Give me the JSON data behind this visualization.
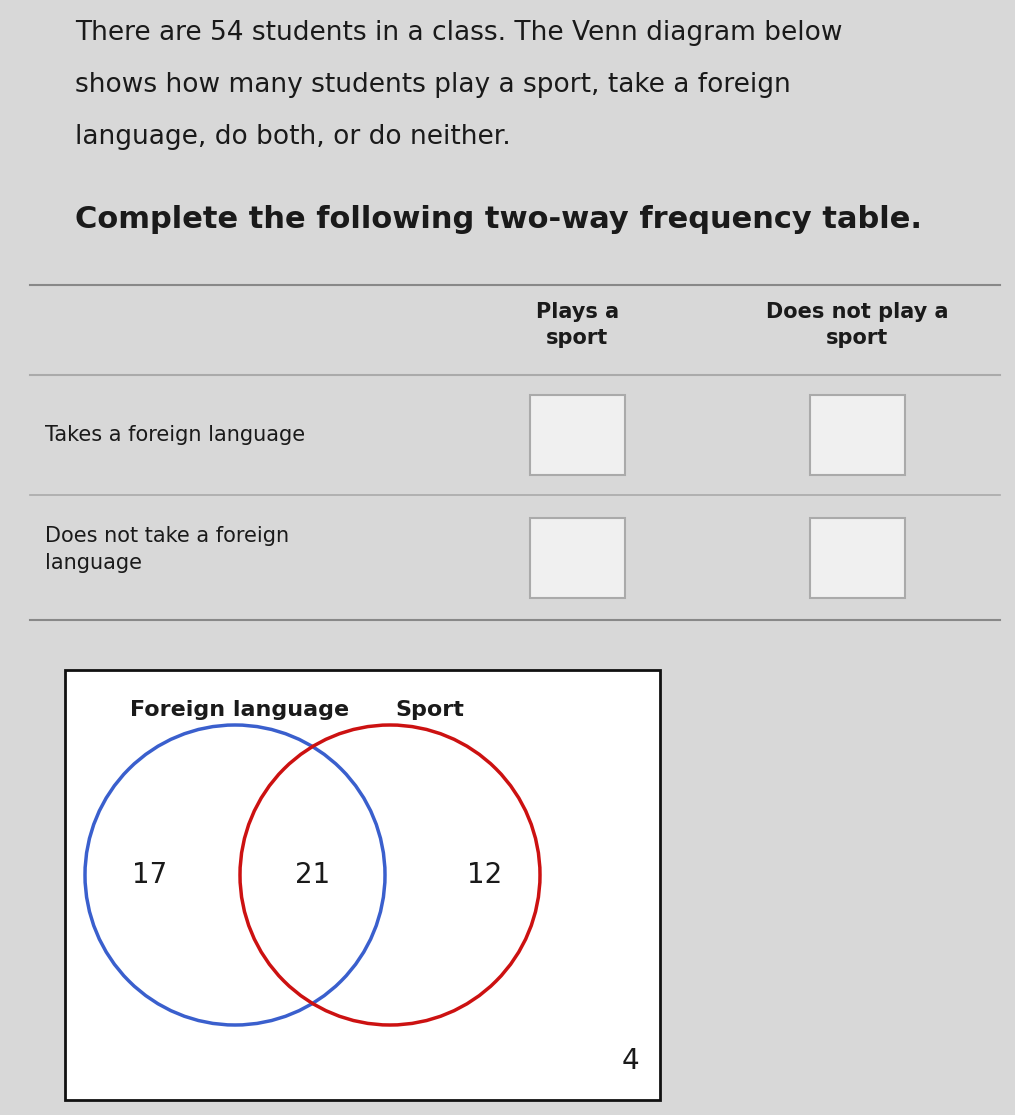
{
  "bg_color": "#d8d8d8",
  "title_text1": "There are 54 students in a class. The Venn diagram below",
  "title_text2": "shows how many students play a sport, take a foreign",
  "title_text3": "language, do both, or do neither.",
  "subtitle_text": "Complete the following two-way frequency table.",
  "col_header1": "Plays a\nsport",
  "col_header2": "Does not play a\nsport",
  "row_header1": "Takes a foreign language",
  "row_header2": "Does not take a foreign\nlanguage",
  "venn_title_left": "Foreign language",
  "venn_title_right": "Sport",
  "venn_left_only": "17",
  "venn_both": "21",
  "venn_right_only": "12",
  "venn_neither": "4",
  "circle_left_color": "#3a5fcd",
  "circle_right_color": "#cc1111",
  "table_bg": "#d8d8d8",
  "venn_bg": "#ffffff",
  "venn_border": "#111111",
  "text_color": "#1a1a1a",
  "line_color": "#aaaaaa",
  "box_border": "#aaaaaa"
}
